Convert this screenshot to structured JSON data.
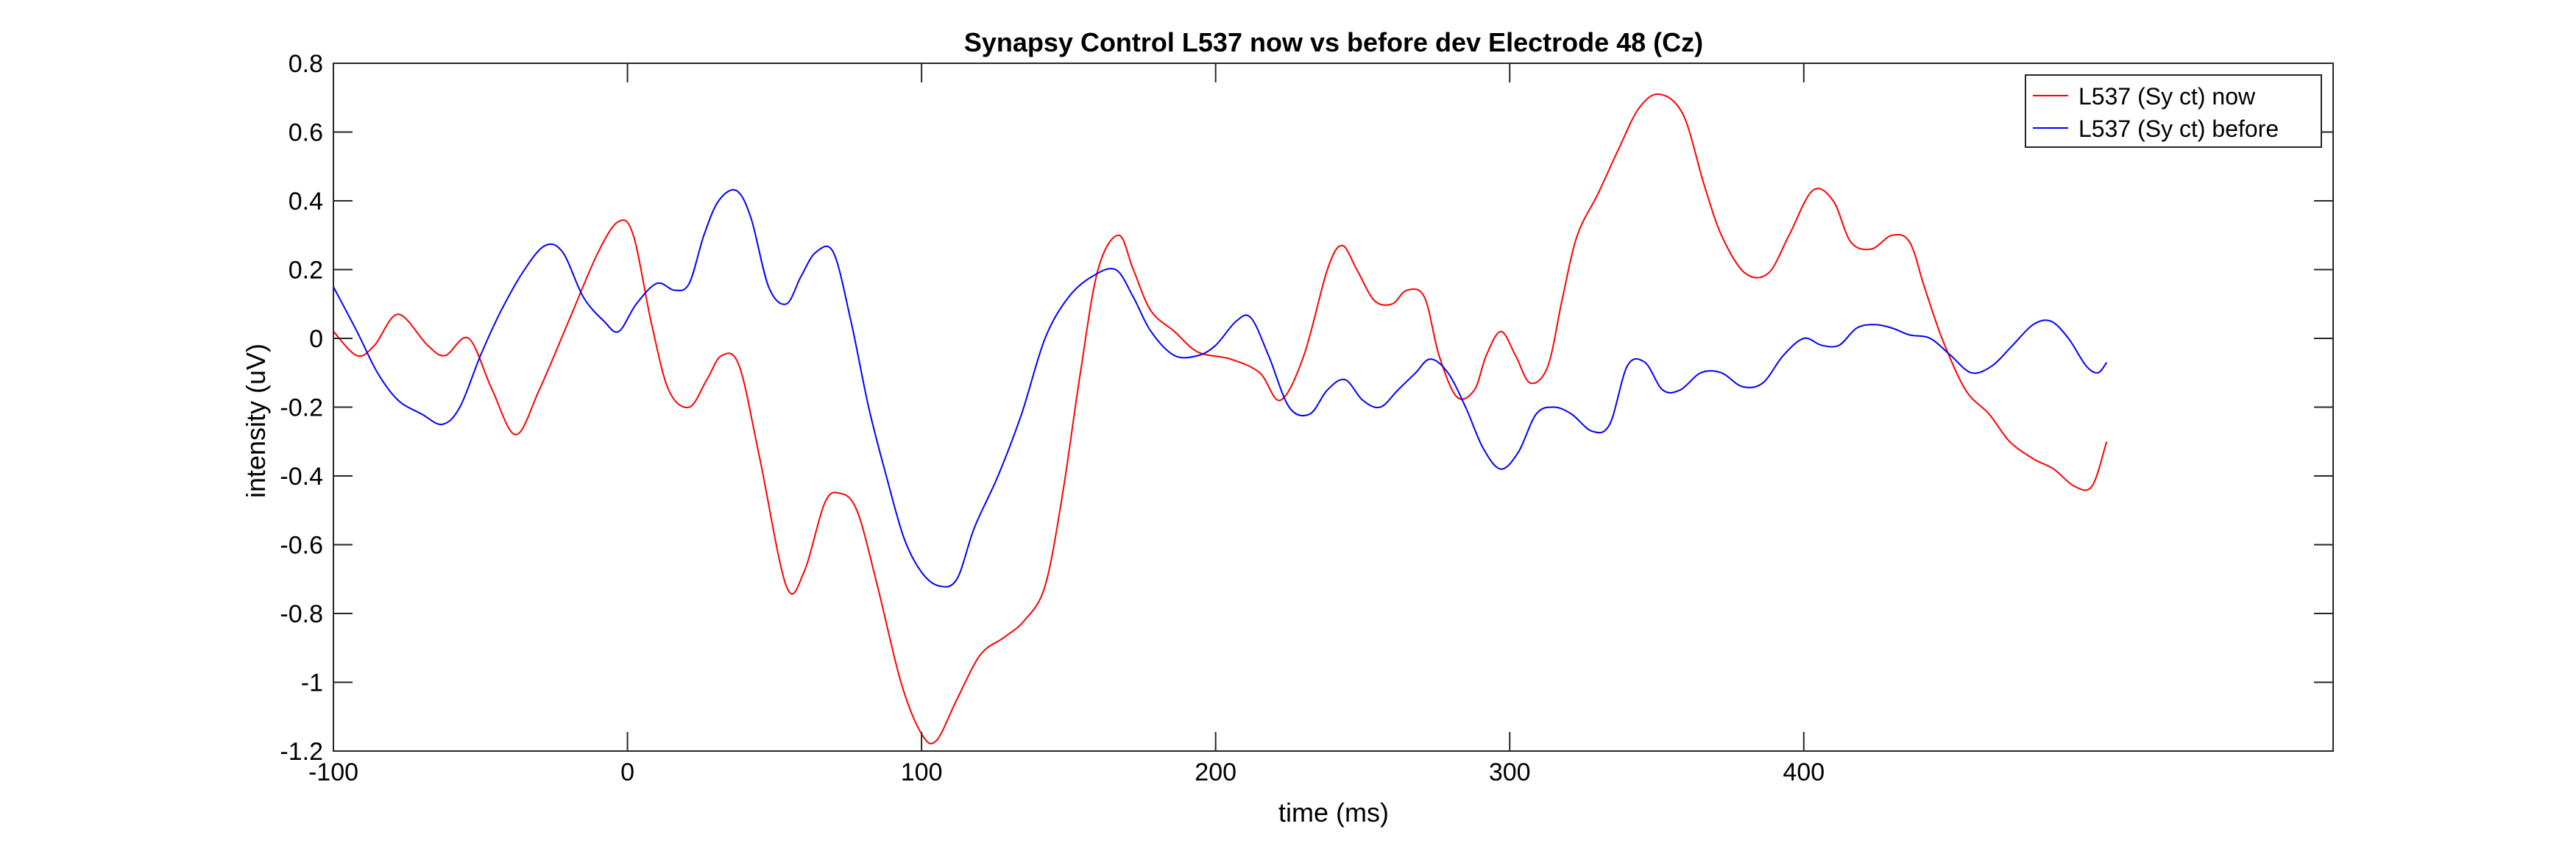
{
  "chart_data": {
    "type": "line",
    "title": "Synapsy Control L537 now vs before dev Electrode 48 (Cz)",
    "xlabel": "time (ms)",
    "ylabel": "intensity (uV)",
    "xlim": [
      -100,
      580
    ],
    "ylim": [
      -1.2,
      0.8
    ],
    "xticks": [
      -100,
      0,
      100,
      200,
      300,
      400
    ],
    "yticks": [
      -1.2,
      -1,
      -0.8,
      -0.6,
      -0.4,
      -0.2,
      0,
      0.2,
      0.4,
      0.6,
      0.8
    ],
    "xtick_labels": [
      "-100",
      "0",
      "100",
      "200",
      "300",
      "400"
    ],
    "ytick_labels": [
      "-1.2",
      "-1",
      "-0.8",
      "-0.6",
      "-0.4",
      "-0.2",
      "0",
      "0.2",
      "0.4",
      "0.6",
      "0.8"
    ],
    "grid": false,
    "legend_position": "top-right",
    "series": [
      {
        "name": "L537 (Sy ct) now",
        "color": "#ff0000",
        "x": [
          -100,
          -92,
          -86,
          -78,
          -68,
          -62,
          -54,
          -46,
          -38,
          -30,
          -20,
          -10,
          -3,
          2,
          8,
          14,
          21,
          27,
          32,
          38,
          45,
          54,
          60,
          67,
          72,
          78,
          85,
          93,
          100,
          105,
          112,
          120,
          128,
          135,
          142,
          148,
          154,
          160,
          167,
          172,
          178,
          186,
          194,
          205,
          215,
          222,
          230,
          238,
          243,
          248,
          254,
          260,
          265,
          271,
          276,
          282,
          288,
          292,
          297,
          302,
          307,
          313,
          318,
          323,
          330,
          337,
          344,
          351,
          359,
          366,
          372,
          380,
          388,
          395,
          403,
          410,
          416,
          423,
          430,
          436,
          441,
          447,
          455,
          463,
          470,
          478,
          485,
          492,
          498,
          503
        ],
        "y": [
          0.02,
          -0.05,
          -0.02,
          0.07,
          -0.02,
          -0.05,
          0.0,
          -0.15,
          -0.28,
          -0.15,
          0.05,
          0.25,
          0.34,
          0.3,
          0.05,
          -0.15,
          -0.2,
          -0.12,
          -0.05,
          -0.08,
          -0.35,
          -0.72,
          -0.68,
          -0.48,
          -0.45,
          -0.5,
          -0.72,
          -1.0,
          -1.15,
          -1.17,
          -1.05,
          -0.92,
          -0.87,
          -0.82,
          -0.72,
          -0.45,
          -0.1,
          0.2,
          0.3,
          0.2,
          0.08,
          0.02,
          -0.04,
          -0.06,
          -0.1,
          -0.18,
          -0.05,
          0.2,
          0.27,
          0.2,
          0.11,
          0.1,
          0.14,
          0.12,
          -0.05,
          -0.17,
          -0.15,
          -0.05,
          0.02,
          -0.05,
          -0.13,
          -0.08,
          0.12,
          0.3,
          0.42,
          0.55,
          0.67,
          0.71,
          0.65,
          0.45,
          0.3,
          0.19,
          0.19,
          0.3,
          0.43,
          0.4,
          0.28,
          0.26,
          0.3,
          0.28,
          0.15,
          0.0,
          -0.15,
          -0.22,
          -0.3,
          -0.35,
          -0.38,
          -0.43,
          -0.43,
          -0.3
        ]
      },
      {
        "name": "L537 (Sy ct) before",
        "color": "#0000ff",
        "x": [
          -100,
          -92,
          -85,
          -78,
          -70,
          -63,
          -57,
          -50,
          -43,
          -35,
          -28,
          -22,
          -15,
          -8,
          -3,
          3,
          10,
          16,
          21,
          26,
          31,
          37,
          42,
          48,
          54,
          59,
          64,
          70,
          76,
          82,
          88,
          94,
          100,
          106,
          112,
          118,
          126,
          134,
          142,
          150,
          158,
          166,
          172,
          178,
          186,
          194,
          200,
          207,
          212,
          218,
          225,
          232,
          238,
          244,
          250,
          256,
          262,
          268,
          273,
          279,
          285,
          291,
          297,
          303,
          309,
          315,
          321,
          328,
          334,
          340,
          346,
          352,
          358,
          365,
          372,
          379,
          386,
          393,
          400,
          406,
          412,
          418,
          424,
          430,
          436,
          443,
          450,
          457,
          464,
          471,
          478,
          484,
          490,
          496,
          500,
          503
        ],
        "y": [
          0.15,
          0.02,
          -0.1,
          -0.18,
          -0.22,
          -0.25,
          -0.2,
          -0.05,
          0.08,
          0.2,
          0.27,
          0.25,
          0.12,
          0.05,
          0.02,
          0.1,
          0.16,
          0.14,
          0.16,
          0.3,
          0.4,
          0.43,
          0.35,
          0.15,
          0.1,
          0.18,
          0.25,
          0.25,
          0.05,
          -0.2,
          -0.4,
          -0.58,
          -0.68,
          -0.72,
          -0.7,
          -0.55,
          -0.4,
          -0.22,
          0.0,
          0.12,
          0.18,
          0.2,
          0.12,
          0.02,
          -0.05,
          -0.05,
          -0.02,
          0.05,
          0.06,
          -0.05,
          -0.2,
          -0.22,
          -0.15,
          -0.12,
          -0.18,
          -0.2,
          -0.15,
          -0.1,
          -0.06,
          -0.1,
          -0.2,
          -0.32,
          -0.38,
          -0.33,
          -0.22,
          -0.2,
          -0.22,
          -0.27,
          -0.25,
          -0.08,
          -0.07,
          -0.15,
          -0.15,
          -0.1,
          -0.1,
          -0.14,
          -0.13,
          -0.05,
          0.0,
          -0.02,
          -0.02,
          0.03,
          0.04,
          0.03,
          0.01,
          0.0,
          -0.05,
          -0.1,
          -0.08,
          -0.02,
          0.04,
          0.05,
          0.0,
          -0.08,
          -0.1,
          -0.07
        ]
      }
    ]
  }
}
